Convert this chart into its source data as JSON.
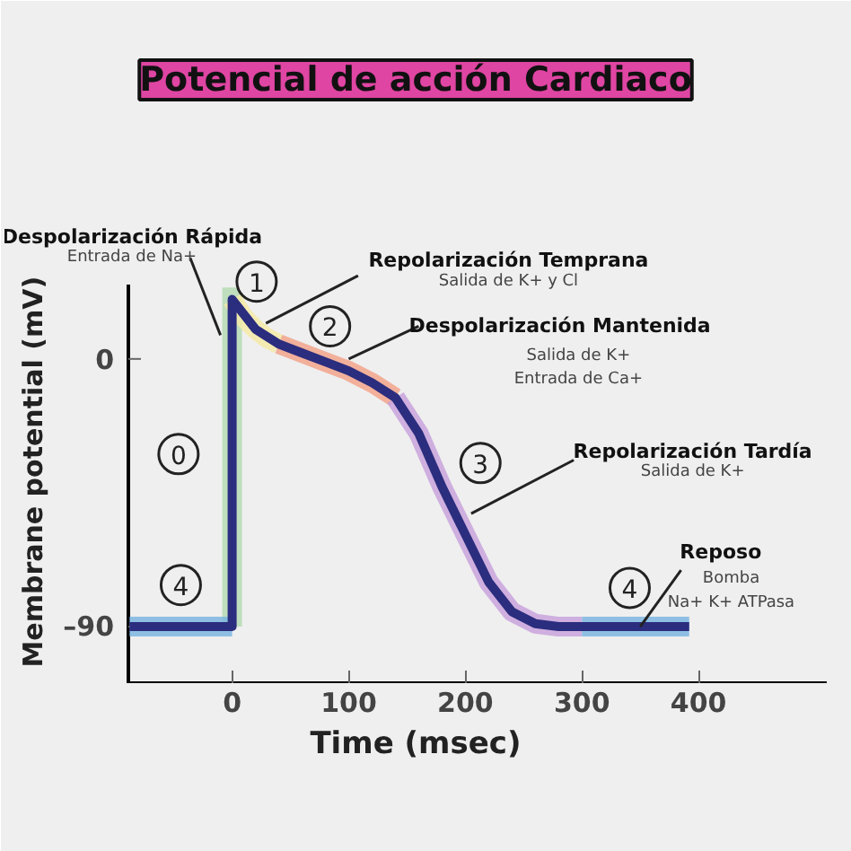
{
  "chart_data": {
    "type": "line",
    "title": "Potencial de acción Cardiaco",
    "xlabel": "Time (msec)",
    "ylabel": "Membrane potential (mV)",
    "xlim": [
      -89,
      510
    ],
    "ylim": [
      -109,
      25
    ],
    "xticks": [
      0,
      100,
      200,
      300,
      400
    ],
    "yticks": [
      0,
      {
        "value": -90,
        "label": "–90"
      }
    ],
    "grid": false,
    "marker": "none",
    "line_style": "solid",
    "series": [
      {
        "color": "#b5dbb5",
        "x": [
          0,
          0
        ],
        "values": [
          -90,
          24
        ]
      },
      {
        "color": "#7cb6e0",
        "x": [
          -88,
          0
        ],
        "values": [
          -90,
          -90
        ]
      },
      {
        "color": "#f5eaa8",
        "x": [
          0,
          10,
          20,
          30,
          40
        ],
        "values": [
          20,
          14,
          10,
          7,
          5
        ]
      },
      {
        "color": "#f2a58c",
        "x": [
          40,
          60,
          80,
          100,
          120,
          140
        ],
        "values": [
          5,
          2,
          -1,
          -4,
          -8,
          -13
        ]
      },
      {
        "color": "#c9a3dc",
        "x": [
          140,
          160,
          180,
          200,
          220,
          240,
          260,
          280,
          300
        ],
        "values": [
          -13,
          -25,
          -43,
          -59,
          -75,
          -85,
          -89,
          -90,
          -90
        ]
      },
      {
        "color": "#7cb6e0",
        "x": [
          300,
          392
        ],
        "values": [
          -90,
          -90
        ]
      },
      {
        "color": "#2b2d7e",
        "x": [
          -88,
          0,
          0,
          2,
          20,
          40,
          60,
          80,
          100,
          120,
          140,
          160,
          180,
          200,
          220,
          240,
          260,
          280,
          300,
          392
        ],
        "values": [
          -90,
          -90,
          20,
          19,
          10,
          5,
          2,
          -1,
          -4,
          -8,
          -13,
          -25,
          -43,
          -59,
          -75,
          -85,
          -89,
          -90,
          -90,
          -90
        ]
      }
    ],
    "annotations": [
      {
        "text": "Despolarización Rápida",
        "x": -10,
        "y": 8
      },
      "Entrada de Na+",
      {
        "text": "Repolarización Temprana",
        "x": 29,
        "y": 12
      },
      "Salida de K+ y Cl",
      {
        "text": "Despolarización Mantenida",
        "x": 100,
        "y": 0
      },
      "Salida de K+",
      "Entrada de Ca+",
      {
        "text": "Repolarización Tardía",
        "x": 205,
        "y": -52
      },
      "Salida de K+",
      {
        "text": "Reposo",
        "x": 350,
        "y": -90
      },
      "Bomba",
      "Na+ K+ ATPasa",
      "0",
      "1",
      "2",
      "3",
      "4",
      "4"
    ]
  }
}
